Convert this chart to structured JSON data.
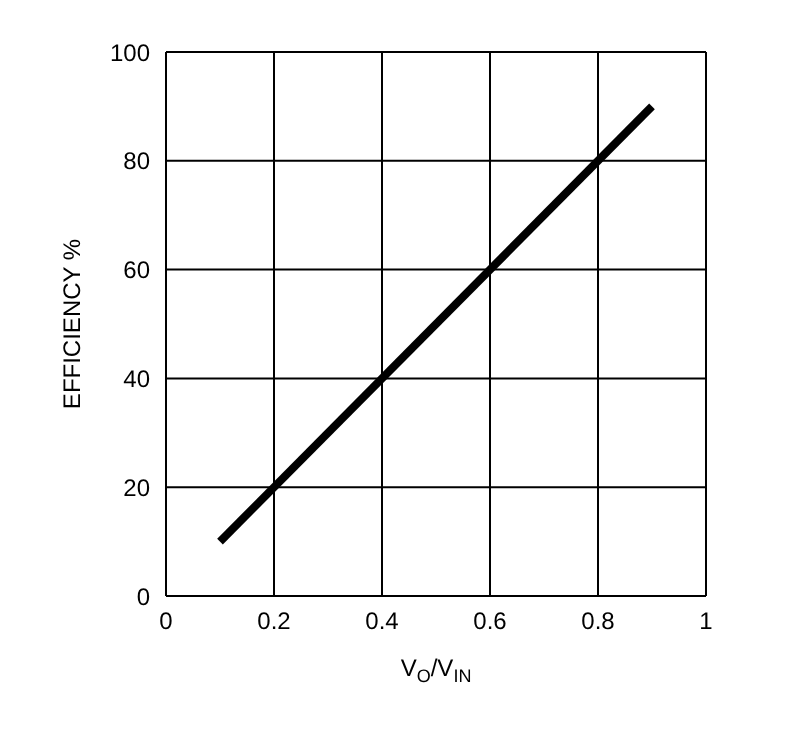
{
  "chart_data": {
    "type": "line",
    "xlabel": "V$_{O}$/V$_{IN}$",
    "ylabel": "EFFICIENCY %",
    "x": [
      0.1,
      0.9
    ],
    "series": [
      {
        "color": "#000000",
        "values": [
          10,
          90
        ]
      }
    ],
    "xlim": [
      0,
      1
    ],
    "xticks": [
      0,
      0.2,
      0.4,
      0.6,
      0.8,
      1
    ],
    "ylim": [
      0,
      100
    ],
    "yticks": [
      0,
      20,
      40,
      60,
      80,
      100
    ],
    "grid": true,
    "marker": "none",
    "line_style": "solid",
    "legend": false
  }
}
